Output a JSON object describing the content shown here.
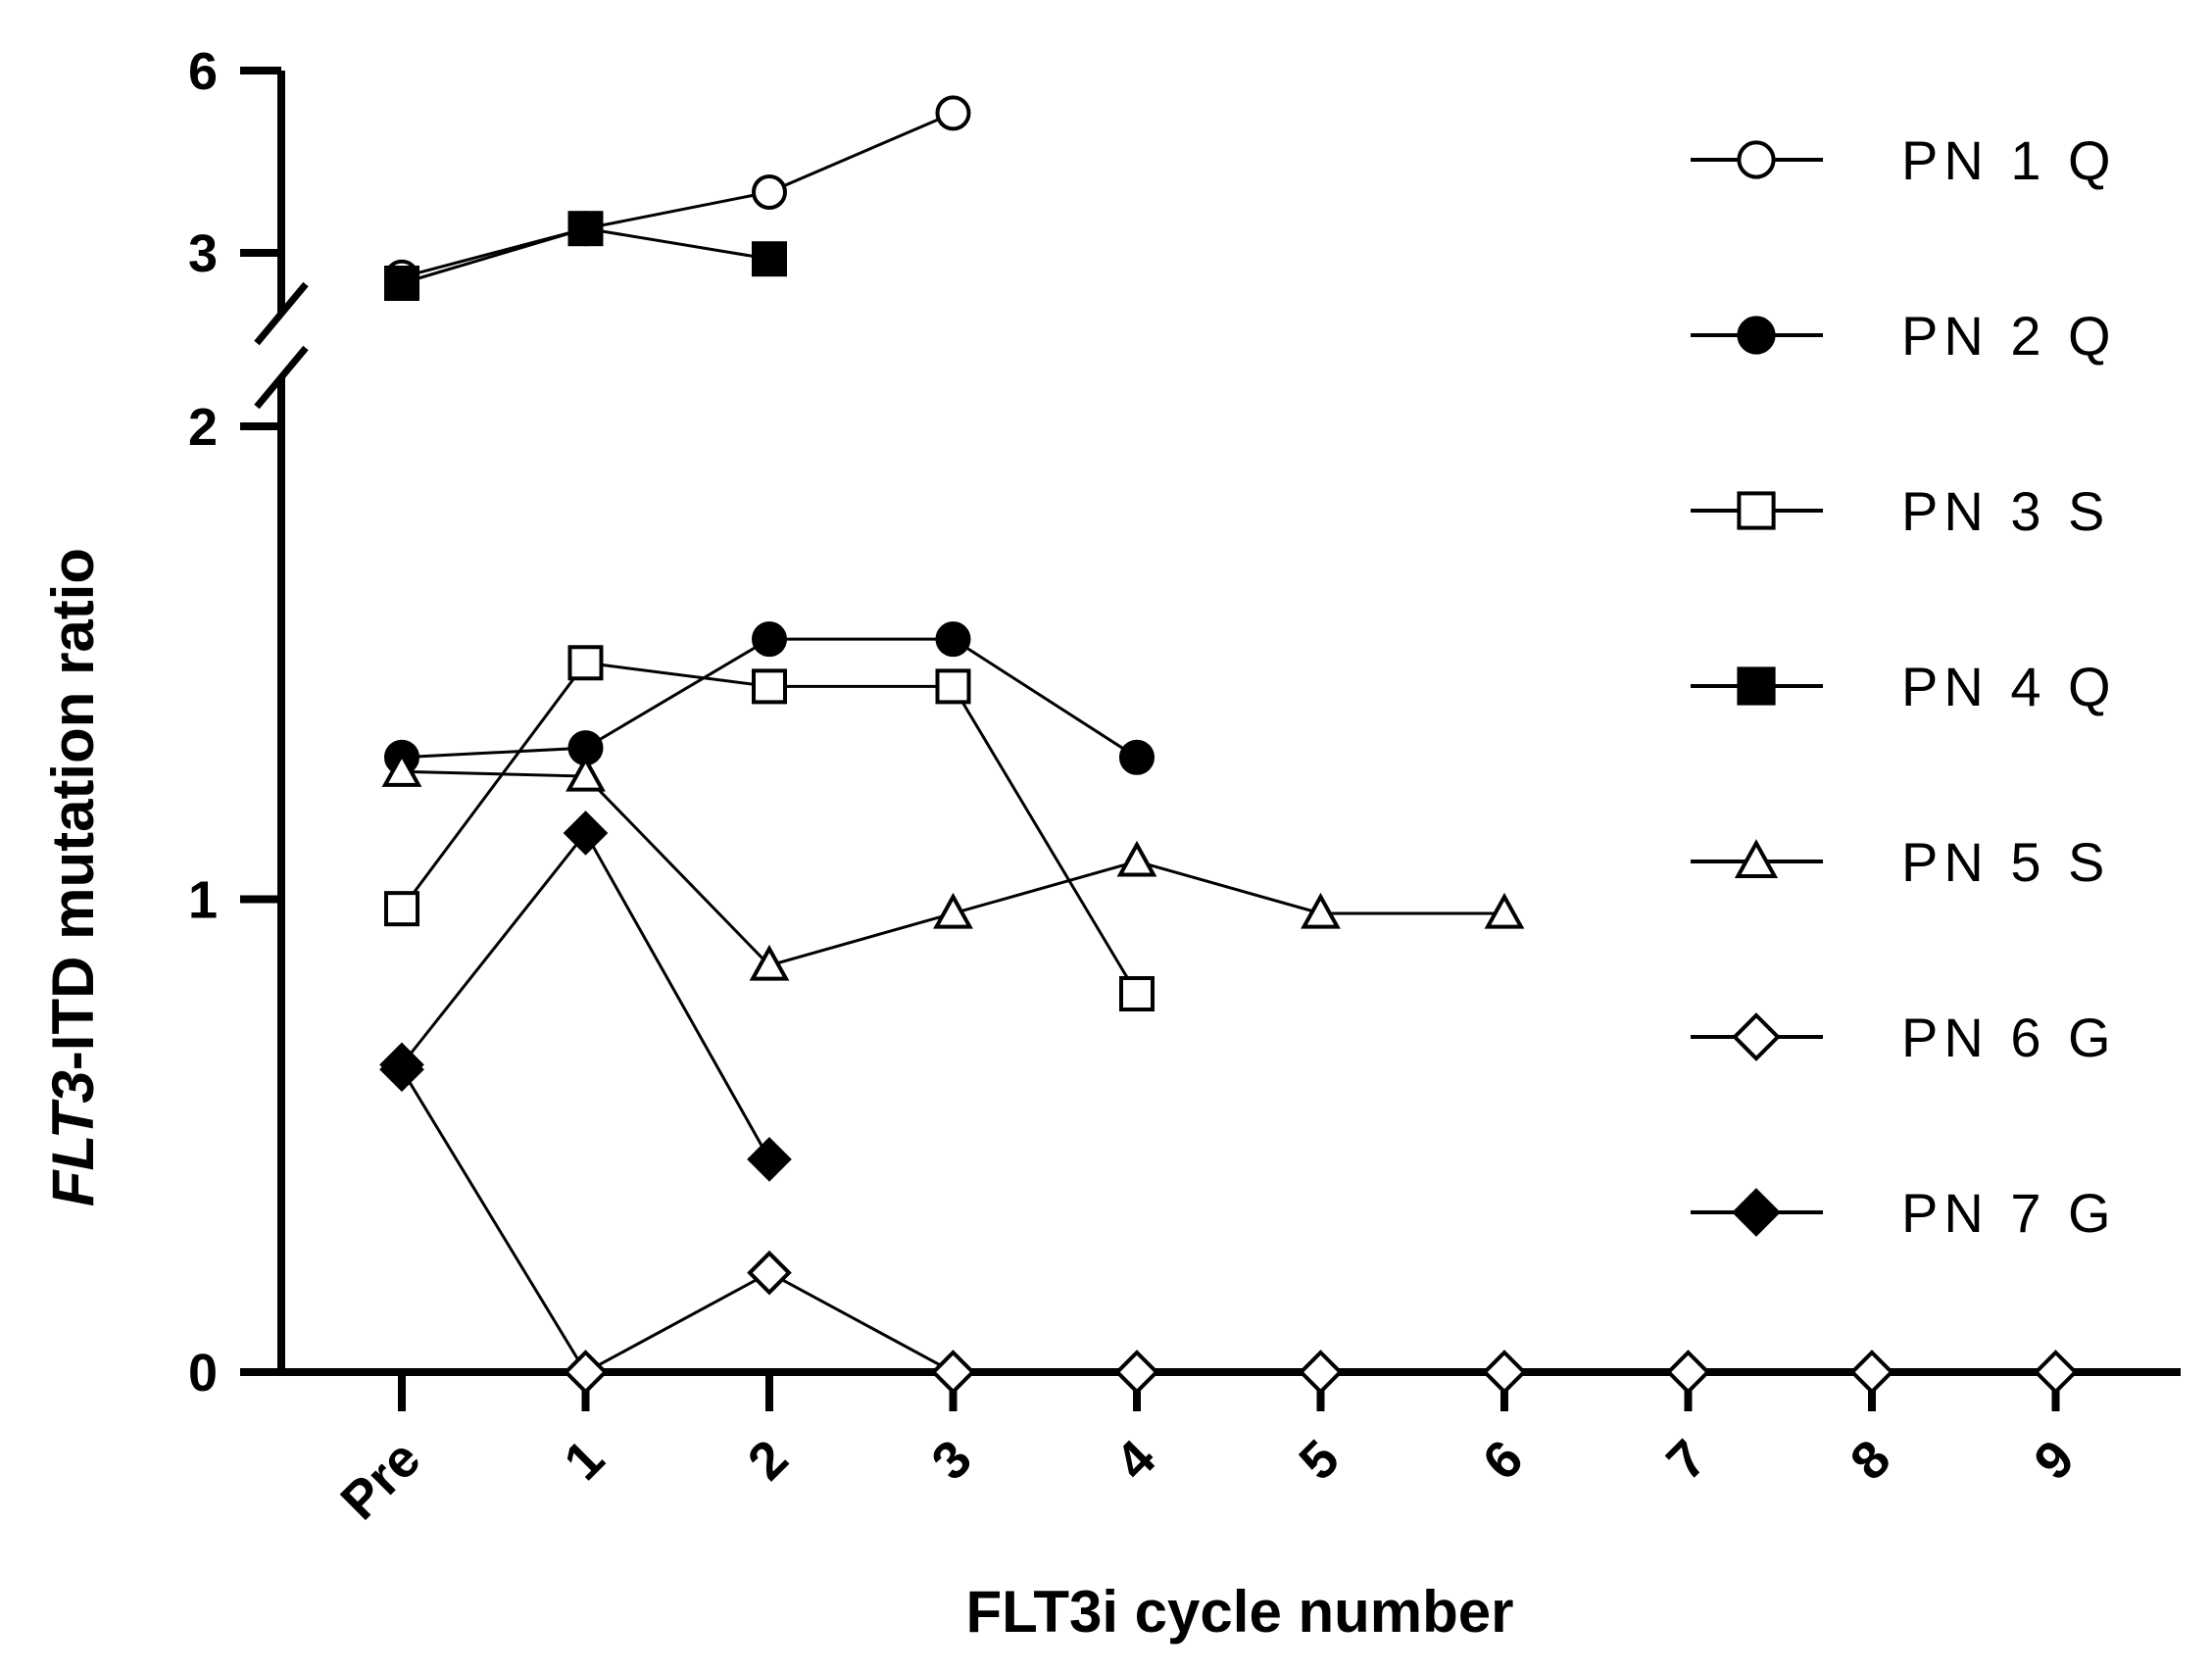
{
  "chart_data": {
    "type": "line",
    "title": "",
    "xlabel": "FLT3i cycle number",
    "ylabel": {
      "italic": "FLT3",
      "rest": "-ITD mutation ratio"
    },
    "categories": [
      "Pre",
      "1",
      "2",
      "3",
      "4",
      "5",
      "6",
      "7",
      "8",
      "9"
    ],
    "y_lower": {
      "range": [
        0,
        2
      ],
      "ticks": [
        "0",
        "1",
        "2"
      ]
    },
    "y_upper": {
      "range": [
        2.3,
        6
      ],
      "ticks": [
        "3",
        "6"
      ]
    },
    "axis_break": true,
    "grid": false,
    "legend_position": "right",
    "series": [
      {
        "name": "PN 1 Q",
        "marker": "circle",
        "filled": false,
        "x": [
          0,
          1,
          2,
          3
        ],
        "values": [
          2.6,
          3.4,
          4.0,
          5.3
        ]
      },
      {
        "name": "PN 2 Q",
        "marker": "circle",
        "filled": true,
        "x": [
          0,
          1,
          2,
          3,
          4
        ],
        "values": [
          1.3,
          1.32,
          1.55,
          1.55,
          1.3
        ]
      },
      {
        "name": "PN 3 S",
        "marker": "square",
        "filled": false,
        "x": [
          0,
          1,
          2,
          3,
          4
        ],
        "values": [
          0.98,
          1.5,
          1.45,
          1.45,
          0.8
        ]
      },
      {
        "name": "PN 4 Q",
        "marker": "square",
        "filled": true,
        "x": [
          0,
          1,
          2
        ],
        "values": [
          2.5,
          3.4,
          2.9
        ]
      },
      {
        "name": "PN 5 S",
        "marker": "triangle",
        "filled": false,
        "x": [
          0,
          1,
          2,
          3,
          4,
          5,
          6
        ],
        "values": [
          1.27,
          1.26,
          0.86,
          0.97,
          1.08,
          0.97,
          0.97
        ]
      },
      {
        "name": "PN 6 G",
        "marker": "diamond",
        "filled": false,
        "x": [
          0,
          1,
          2,
          3,
          4,
          5,
          6,
          7,
          8,
          9
        ],
        "values": [
          0.64,
          0.0,
          0.21,
          0.0,
          0.0,
          0.0,
          0.0,
          0.0,
          0.0,
          0.0
        ]
      },
      {
        "name": "PN 7 G",
        "marker": "diamond",
        "filled": true,
        "x": [
          0,
          1,
          2
        ],
        "values": [
          0.65,
          1.14,
          0.45
        ]
      }
    ]
  }
}
